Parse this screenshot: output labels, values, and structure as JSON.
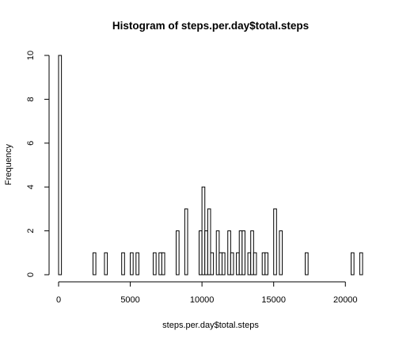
{
  "chart_data": {
    "type": "bar",
    "title": "Histogram of steps.per.day$total.steps",
    "xlabel": "steps.per.day$total.steps",
    "ylabel": "Frequency",
    "bin_width": 200,
    "xlim": [
      0,
      21200
    ],
    "ylim": [
      0,
      10
    ],
    "x_ticks": [
      0,
      5000,
      10000,
      15000,
      20000
    ],
    "y_ticks": [
      0,
      2,
      4,
      6,
      8,
      10
    ],
    "bins": [
      {
        "start": 0,
        "count": 10
      },
      {
        "start": 2400,
        "count": 1
      },
      {
        "start": 3200,
        "count": 1
      },
      {
        "start": 4400,
        "count": 1
      },
      {
        "start": 5000,
        "count": 1
      },
      {
        "start": 5400,
        "count": 1
      },
      {
        "start": 6600,
        "count": 1
      },
      {
        "start": 7000,
        "count": 1
      },
      {
        "start": 7200,
        "count": 1
      },
      {
        "start": 8200,
        "count": 2
      },
      {
        "start": 8800,
        "count": 3
      },
      {
        "start": 9800,
        "count": 2
      },
      {
        "start": 10000,
        "count": 4
      },
      {
        "start": 10200,
        "count": 2
      },
      {
        "start": 10400,
        "count": 3
      },
      {
        "start": 10600,
        "count": 1
      },
      {
        "start": 11000,
        "count": 2
      },
      {
        "start": 11200,
        "count": 1
      },
      {
        "start": 11400,
        "count": 1
      },
      {
        "start": 11800,
        "count": 2
      },
      {
        "start": 12000,
        "count": 1
      },
      {
        "start": 12400,
        "count": 1
      },
      {
        "start": 12600,
        "count": 2
      },
      {
        "start": 12800,
        "count": 2
      },
      {
        "start": 13200,
        "count": 1
      },
      {
        "start": 13400,
        "count": 2
      },
      {
        "start": 13600,
        "count": 1
      },
      {
        "start": 14200,
        "count": 1
      },
      {
        "start": 14400,
        "count": 1
      },
      {
        "start": 15000,
        "count": 3
      },
      {
        "start": 15400,
        "count": 2
      },
      {
        "start": 17200,
        "count": 1
      },
      {
        "start": 20400,
        "count": 1
      },
      {
        "start": 21000,
        "count": 1
      }
    ]
  }
}
